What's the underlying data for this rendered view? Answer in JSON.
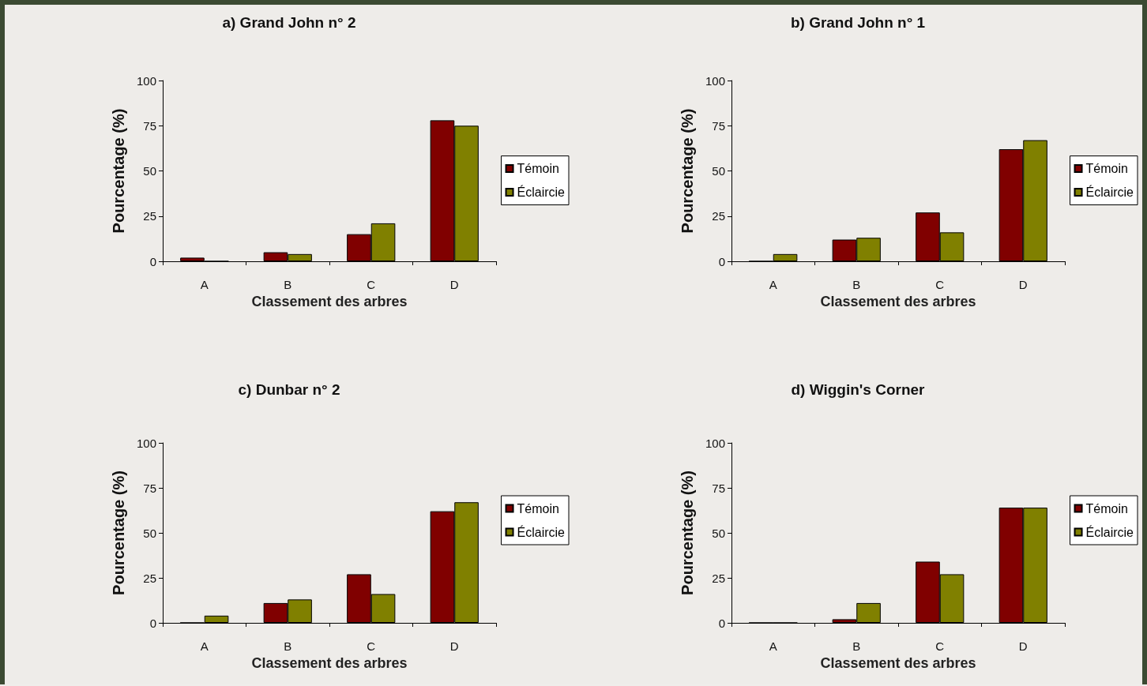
{
  "chart_data": [
    {
      "type": "bar",
      "title": "a) Grand John n° 2",
      "xlabel": "Classement des arbres",
      "ylabel": "Pourcentage (%)",
      "categories": [
        "A",
        "B",
        "C",
        "D"
      ],
      "series": [
        {
          "name": "Témoin",
          "color": "#800000",
          "values": [
            2,
            5,
            15,
            78
          ]
        },
        {
          "name": "Éclaircie",
          "color": "#808000",
          "values": [
            0,
            4,
            21,
            75
          ]
        }
      ],
      "ylim": [
        0,
        100
      ],
      "yticks": [
        0,
        25,
        50,
        75,
        100
      ],
      "legend": "right"
    },
    {
      "type": "bar",
      "title": "b) Grand John n° 1",
      "xlabel": "Classement des arbres",
      "ylabel": "Pourcentage (%)",
      "categories": [
        "A",
        "B",
        "C",
        "D"
      ],
      "series": [
        {
          "name": "Témoin",
          "color": "#800000",
          "values": [
            0,
            12,
            27,
            62
          ]
        },
        {
          "name": "Éclaircie",
          "color": "#808000",
          "values": [
            4,
            13,
            16,
            67
          ]
        }
      ],
      "ylim": [
        0,
        100
      ],
      "yticks": [
        0,
        25,
        50,
        75,
        100
      ],
      "legend": "right"
    },
    {
      "type": "bar",
      "title": "c) Dunbar n° 2",
      "xlabel": "Classement des arbres",
      "ylabel": "Pourcentage (%)",
      "categories": [
        "A",
        "B",
        "C",
        "D"
      ],
      "series": [
        {
          "name": "Témoin",
          "color": "#800000",
          "values": [
            0,
            11,
            27,
            62
          ]
        },
        {
          "name": "Éclaircie",
          "color": "#808000",
          "values": [
            4,
            13,
            16,
            67
          ]
        }
      ],
      "ylim": [
        0,
        100
      ],
      "yticks": [
        0,
        25,
        50,
        75,
        100
      ],
      "legend": "right"
    },
    {
      "type": "bar",
      "title": "d) Wiggin's Corner",
      "xlabel": "Classement des arbres",
      "ylabel": "Pourcentage (%)",
      "categories": [
        "A",
        "B",
        "C",
        "D"
      ],
      "series": [
        {
          "name": "Témoin",
          "color": "#800000",
          "values": [
            0,
            2,
            34,
            64
          ]
        },
        {
          "name": "Éclaircie",
          "color": "#808000",
          "values": [
            0,
            11,
            27,
            64
          ]
        }
      ],
      "ylim": [
        0,
        100
      ],
      "yticks": [
        0,
        25,
        50,
        75,
        100
      ],
      "legend": "right"
    }
  ]
}
